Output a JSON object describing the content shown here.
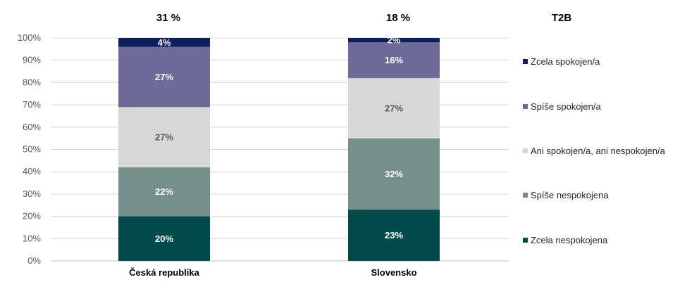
{
  "chart_data": {
    "type": "bar",
    "stacked": true,
    "categories": [
      "Česká republika",
      "Slovensko"
    ],
    "series": [
      {
        "name": "Zcela nespokojena",
        "values": [
          20,
          23
        ],
        "labels": [
          "20%",
          "23%"
        ],
        "color": "#014b4b",
        "label_color": "#ffffff"
      },
      {
        "name": "Spíše nespokojena",
        "values": [
          22,
          32
        ],
        "labels": [
          "22%",
          "32%"
        ],
        "color": "#768f8c",
        "label_color": "#ffffff"
      },
      {
        "name": "Ani spokojen/a, ani nespokojen/a",
        "values": [
          27,
          27
        ],
        "labels": [
          "27%",
          "27%"
        ],
        "color": "#d7d7d7",
        "label_color": "#595959"
      },
      {
        "name": "Spíše spokojen/a",
        "values": [
          27,
          16
        ],
        "labels": [
          "27%",
          "16%"
        ],
        "color": "#6e6b9b",
        "label_color": "#ffffff"
      },
      {
        "name": "Zcela spokojen/a",
        "values": [
          4,
          2
        ],
        "labels": [
          "4%",
          "2%"
        ],
        "color": "#0f1f5c",
        "label_color": "#ffffff"
      }
    ],
    "ylim": [
      0,
      100
    ],
    "yticks": [
      "0%",
      "10%",
      "20%",
      "30%",
      "40%",
      "50%",
      "60%",
      "70%",
      "80%",
      "90%",
      "100%"
    ],
    "legend_position": "right",
    "t2b": {
      "header": "T2B",
      "values": [
        "31 %",
        "18 %"
      ]
    },
    "title": "",
    "xlabel": "",
    "ylabel": ""
  }
}
